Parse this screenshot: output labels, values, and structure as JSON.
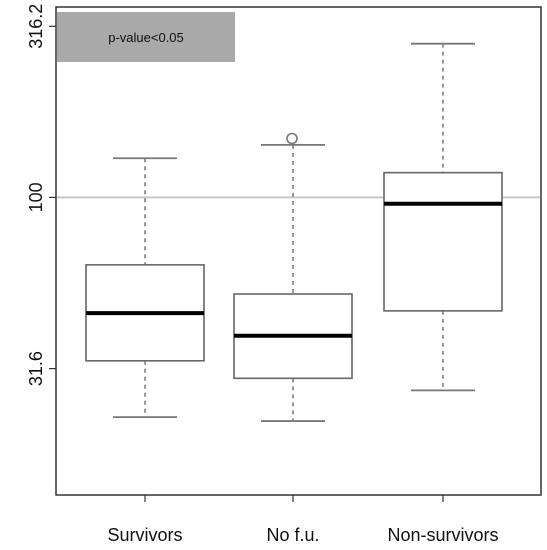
{
  "chart_data": {
    "type": "box",
    "title": "",
    "xlabel": "",
    "ylabel": "",
    "y_scale": "log",
    "ylim": [
      13.5,
      360
    ],
    "y_ticks": [
      {
        "value": 31.6,
        "label": "31.6"
      },
      {
        "value": 100,
        "label": "100"
      },
      {
        "value": 316.2,
        "label": "316.2"
      }
    ],
    "reference_line": 100,
    "annotation": "p-value<0.05",
    "categories": [
      "Survivors",
      "No f.u.",
      "Non-survivors"
    ],
    "boxes": [
      {
        "category": "Survivors",
        "whisker_low": 22.8,
        "q1": 33.3,
        "median": 45.9,
        "q3": 63.5,
        "whisker_high": 130.1,
        "outliers": []
      },
      {
        "category": "No f.u.",
        "whisker_low": 22.2,
        "q1": 29.6,
        "median": 39.4,
        "q3": 52.2,
        "whisker_high": 142.4,
        "outliers": [
          148.6
        ]
      },
      {
        "category": "Non-survivors",
        "whisker_low": 27.3,
        "q1": 46.6,
        "median": 95.8,
        "q3": 118.1,
        "whisker_high": 281.3,
        "outliers": []
      }
    ]
  },
  "colors": {
    "box_stroke": "#666666",
    "median": "#000000",
    "whisker": "#777777",
    "reference_line": "#c8c8c8",
    "annotation_bg": "#a9a9a9",
    "axis": "#333333"
  }
}
